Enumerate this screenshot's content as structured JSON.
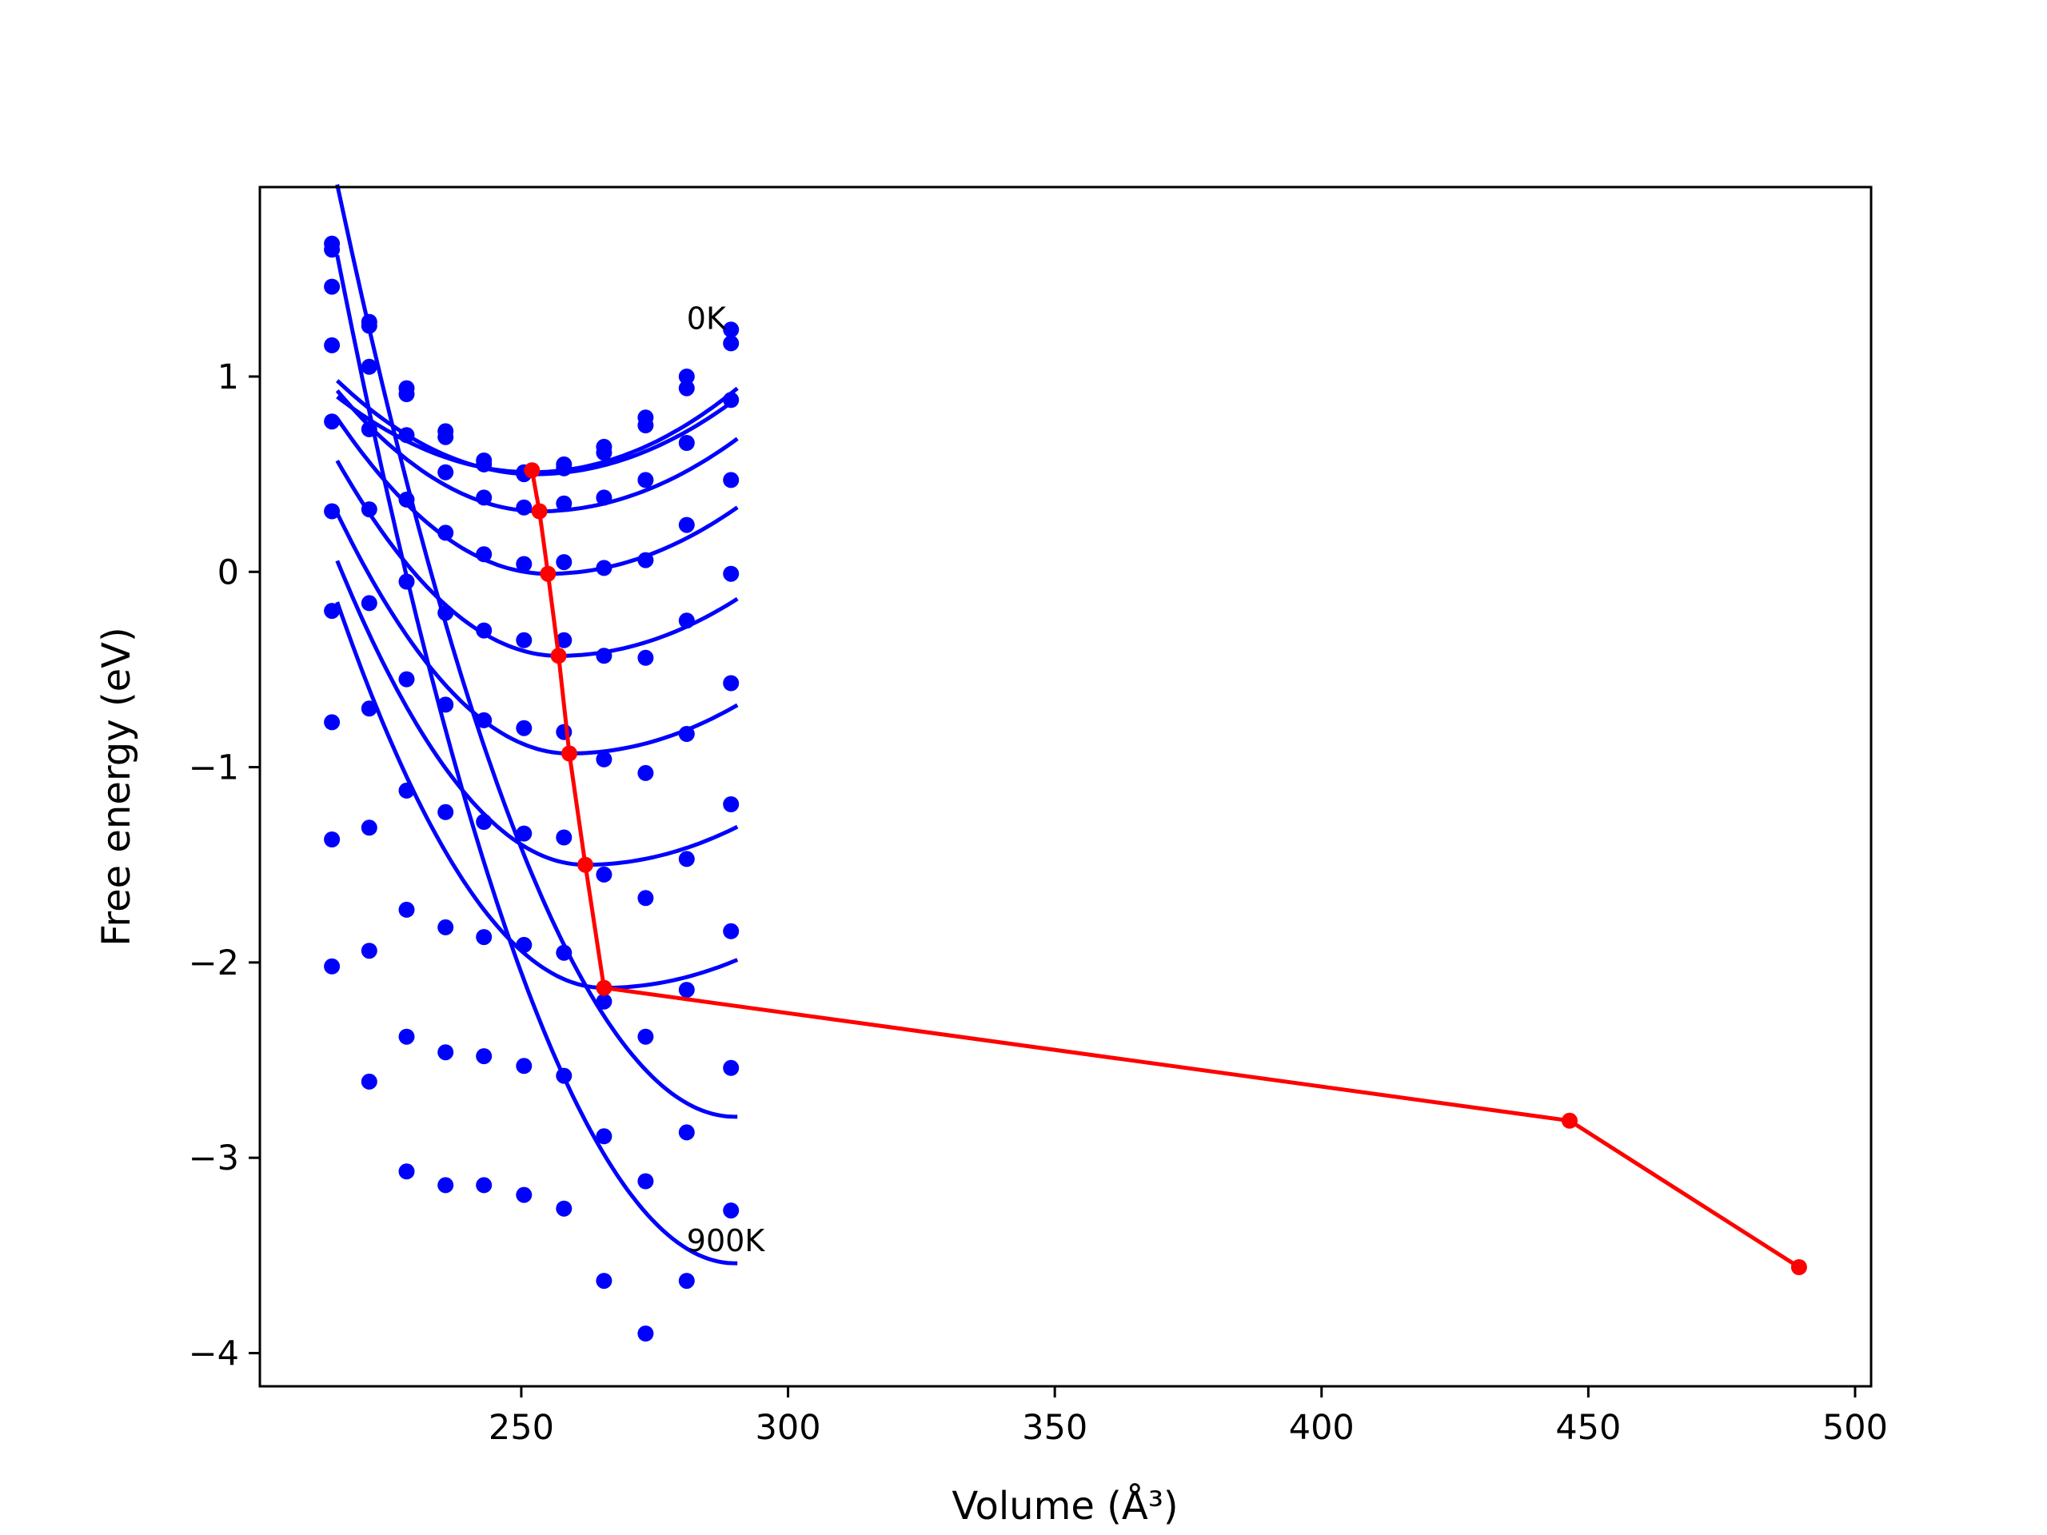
{
  "chart_data": {
    "type": "scatter",
    "title": "",
    "xlabel": "Volume (Å³)",
    "ylabel": "Free energy (eV)",
    "xlim": [
      201,
      503
    ],
    "ylim": [
      -4.17,
      1.97
    ],
    "xticks": [
      250,
      300,
      350,
      400,
      450,
      500
    ],
    "yticks": [
      1,
      0,
      -1,
      -2,
      -3,
      -4
    ],
    "xtick_labels": [
      "250",
      "300",
      "350",
      "400",
      "450",
      "500"
    ],
    "ytick_labels": [
      "1",
      "0",
      "−1",
      "−2",
      "−3",
      "−4"
    ],
    "grid": false,
    "legend": false,
    "colors": {
      "series": "#0000ff",
      "path": "#ff0000",
      "axes": "#000000"
    },
    "annotations": [
      {
        "text": "0K",
        "x": 281.0,
        "y": 1.3
      },
      {
        "text": "900K",
        "x": 281.0,
        "y": -3.42
      }
    ],
    "volumes": [
      214.5,
      221.5,
      228.5,
      235.8,
      243.0,
      250.5,
      258.0,
      265.5,
      273.3,
      281.0,
      289.3
    ],
    "series": [
      {
        "name": "0K",
        "points": [
          1.68,
          1.28,
          0.94,
          0.72,
          0.57,
          0.51,
          0.55,
          0.64,
          0.79,
          1.0,
          1.24
        ],
        "fit": {
          "vmin": 252.0,
          "fmin": 0.51,
          "a": 0.00029,
          "b": 0.06
        }
      },
      {
        "name": "",
        "points": [
          1.65,
          1.26,
          0.91,
          0.69,
          0.55,
          0.5,
          0.53,
          0.61,
          0.75,
          0.94,
          1.17
        ],
        "fit": {
          "vmin": 252.5,
          "fmin": 0.5,
          "a": 0.00027,
          "b": 0.06
        }
      },
      {
        "name": "",
        "points": [
          1.46,
          1.05,
          0.7,
          0.51,
          0.38,
          0.33,
          0.35,
          0.38,
          0.47,
          0.66,
          0.88
        ],
        "fit": {
          "vmin": 253.4,
          "fmin": 0.31,
          "a": 0.00027,
          "b": 0.09
        }
      },
      {
        "name": "",
        "points": [
          1.16,
          0.73,
          0.37,
          0.2,
          0.09,
          0.04,
          0.05,
          0.02,
          0.06,
          0.24,
          0.47
        ],
        "fit": {
          "vmin": 255.0,
          "fmin": -0.01,
          "a": 0.00027,
          "b": 0.115
        }
      },
      {
        "name": "",
        "points": [
          0.77,
          0.32,
          -0.05,
          -0.21,
          -0.3,
          -0.35,
          -0.35,
          -0.43,
          -0.44,
          -0.25,
          -0.01
        ],
        "fit": {
          "vmin": 257.0,
          "fmin": -0.43,
          "a": 0.00026,
          "b": 0.14
        }
      },
      {
        "name": "",
        "points": [
          0.31,
          -0.16,
          -0.55,
          -0.68,
          -0.76,
          -0.8,
          -0.82,
          -0.96,
          -1.03,
          -0.83,
          -0.57
        ],
        "fit": {
          "vmin": 259.0,
          "fmin": -0.93,
          "a": 0.00025,
          "b": 0.165
        }
      },
      {
        "name": "",
        "points": [
          -0.2,
          -0.7,
          -1.12,
          -1.23,
          -1.28,
          -1.34,
          -1.36,
          -1.55,
          -1.67,
          -1.47,
          -1.19
        ],
        "fit": {
          "vmin": 262.0,
          "fmin": -1.5,
          "a": 0.00024,
          "b": 0.19
        }
      },
      {
        "name": "",
        "points": [
          -0.77,
          -1.31,
          -1.73,
          -1.82,
          -1.87,
          -1.91,
          -1.95,
          -2.2,
          -2.38,
          -2.14,
          -1.84
        ],
        "fit": {
          "vmin": 265.5,
          "fmin": -2.13,
          "a": 0.00023,
          "b": 0.215
        }
      },
      {
        "name": "",
        "points": [
          -1.37,
          -1.94,
          -2.38,
          -2.46,
          -2.48,
          -2.53,
          -2.58,
          -2.89,
          -3.12,
          -2.87,
          -2.54
        ],
        "fit": {
          "vmin": 290.0,
          "fmin": -2.79,
          "a": 0.00022,
          "b": 0.24
        }
      },
      {
        "name": "900K",
        "points": [
          -2.02,
          -2.61,
          -3.07,
          -3.14,
          -3.14,
          -3.19,
          -3.26,
          -3.63,
          -3.9,
          -3.63,
          -3.27
        ],
        "fit": {
          "vmin": 290.0,
          "fmin": -3.54,
          "a": 0.00021,
          "b": 0.265
        }
      }
    ],
    "minimum_path": [
      {
        "x": 252.0,
        "y": 0.52
      },
      {
        "x": 253.4,
        "y": 0.31
      },
      {
        "x": 255.0,
        "y": -0.01
      },
      {
        "x": 257.0,
        "y": -0.43
      },
      {
        "x": 259.0,
        "y": -0.93
      },
      {
        "x": 262.0,
        "y": -1.5
      },
      {
        "x": 265.5,
        "y": -2.13
      },
      {
        "x": 446.5,
        "y": -2.81
      },
      {
        "x": 489.5,
        "y": -3.56
      }
    ]
  }
}
